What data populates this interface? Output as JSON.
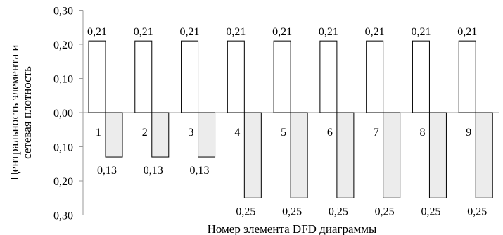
{
  "chart_data": {
    "type": "bar",
    "ylabel": "Центральность элемента и сетевая плотность",
    "xlabel": "Номер элемента DFD диаграммы",
    "ylim": [
      -0.3,
      0.3
    ],
    "y_ticks": [
      "0,30",
      "0,20",
      "0,10",
      "0,00",
      "0,10",
      "0,20",
      "0,30"
    ],
    "categories": [
      "1",
      "2",
      "3",
      "4",
      "5",
      "6",
      "7",
      "8",
      "9"
    ],
    "series": [
      {
        "values": [
          0.21,
          0.21,
          0.21,
          0.21,
          0.21,
          0.21,
          0.21,
          0.21,
          0.21
        ],
        "labels": [
          "0,21",
          "0,21",
          "0,21",
          "0,21",
          "0,21",
          "0,21",
          "0,21",
          "0,21",
          "0,21"
        ],
        "fill": "#ffffff"
      },
      {
        "values": [
          -0.13,
          -0.13,
          -0.13,
          -0.25,
          -0.25,
          -0.25,
          -0.25,
          -0.25,
          -0.25
        ],
        "labels": [
          "0,13",
          "0,13",
          "0,13",
          "0,25",
          "0,25",
          "0,25",
          "0,25",
          "0,25",
          "0,25"
        ],
        "fill": "#ececec"
      }
    ],
    "grid": false,
    "legend": "none",
    "colors": {
      "stroke": "#000000",
      "axis": "#9a9a9a"
    }
  }
}
